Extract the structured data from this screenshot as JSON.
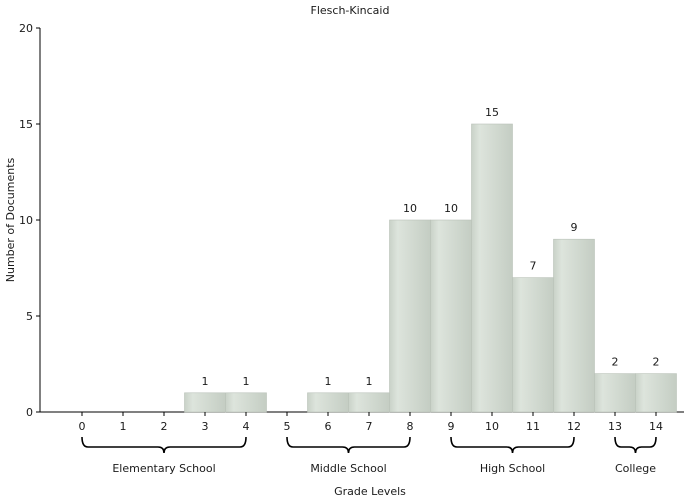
{
  "chart_data": {
    "type": "bar",
    "title": "Flesch-Kincaid",
    "xlabel": "Grade Levels",
    "ylabel": "Number of Documents",
    "categories": [
      "0",
      "1",
      "2",
      "3",
      "4",
      "5",
      "6",
      "7",
      "8",
      "9",
      "10",
      "11",
      "12",
      "13",
      "14"
    ],
    "values": [
      0,
      0,
      0,
      1,
      1,
      0,
      1,
      1,
      10,
      10,
      15,
      7,
      9,
      2,
      2
    ],
    "ylim": [
      0,
      20
    ],
    "yticks": [
      0,
      5,
      10,
      15,
      20
    ],
    "data_labels": true,
    "grid": false,
    "groups": [
      {
        "label": "Elementary School",
        "from": 0,
        "to": 4
      },
      {
        "label": "Middle School",
        "from": 5,
        "to": 8
      },
      {
        "label": "High School",
        "from": 9,
        "to": 12
      },
      {
        "label": "College",
        "from": 13,
        "to": 14
      }
    ],
    "colors": {
      "bar_fill": "#d3dbd2",
      "bar_stroke": "#b9c2b8",
      "axis": "#000000"
    }
  }
}
